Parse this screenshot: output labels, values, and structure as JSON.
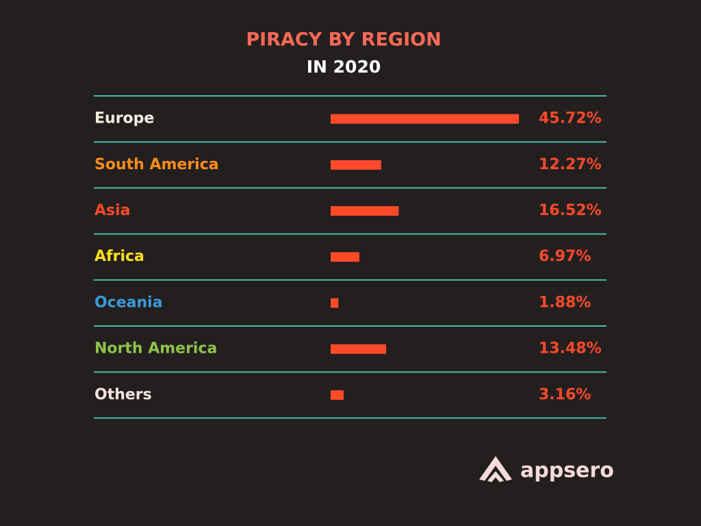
{
  "chart_data": {
    "type": "bar",
    "orientation": "horizontal",
    "title": "PIRACY BY REGION",
    "subtitle": "IN 2020",
    "categories": [
      "Europe",
      "South America",
      "Asia",
      "Africa",
      "Oceania",
      "North America",
      "Others"
    ],
    "category_colors": [
      "#f2efe4",
      "#ff8c1a",
      "#ff4a2a",
      "#ffe01a",
      "#3a9ad9",
      "#8fc24a",
      "#f7e2e2"
    ],
    "values": [
      45.72,
      12.27,
      16.52,
      6.97,
      1.88,
      13.48,
      3.16
    ],
    "value_labels": [
      "45.72%",
      "12.27%",
      "16.52%",
      "6.97%",
      "1.88%",
      "13.48%",
      "3.16%"
    ],
    "color": "#ff4a2a",
    "value_label_color": "#ff4a2a",
    "separator_color": "#4fb8a6"
  },
  "brand": {
    "name": "appsero"
  }
}
